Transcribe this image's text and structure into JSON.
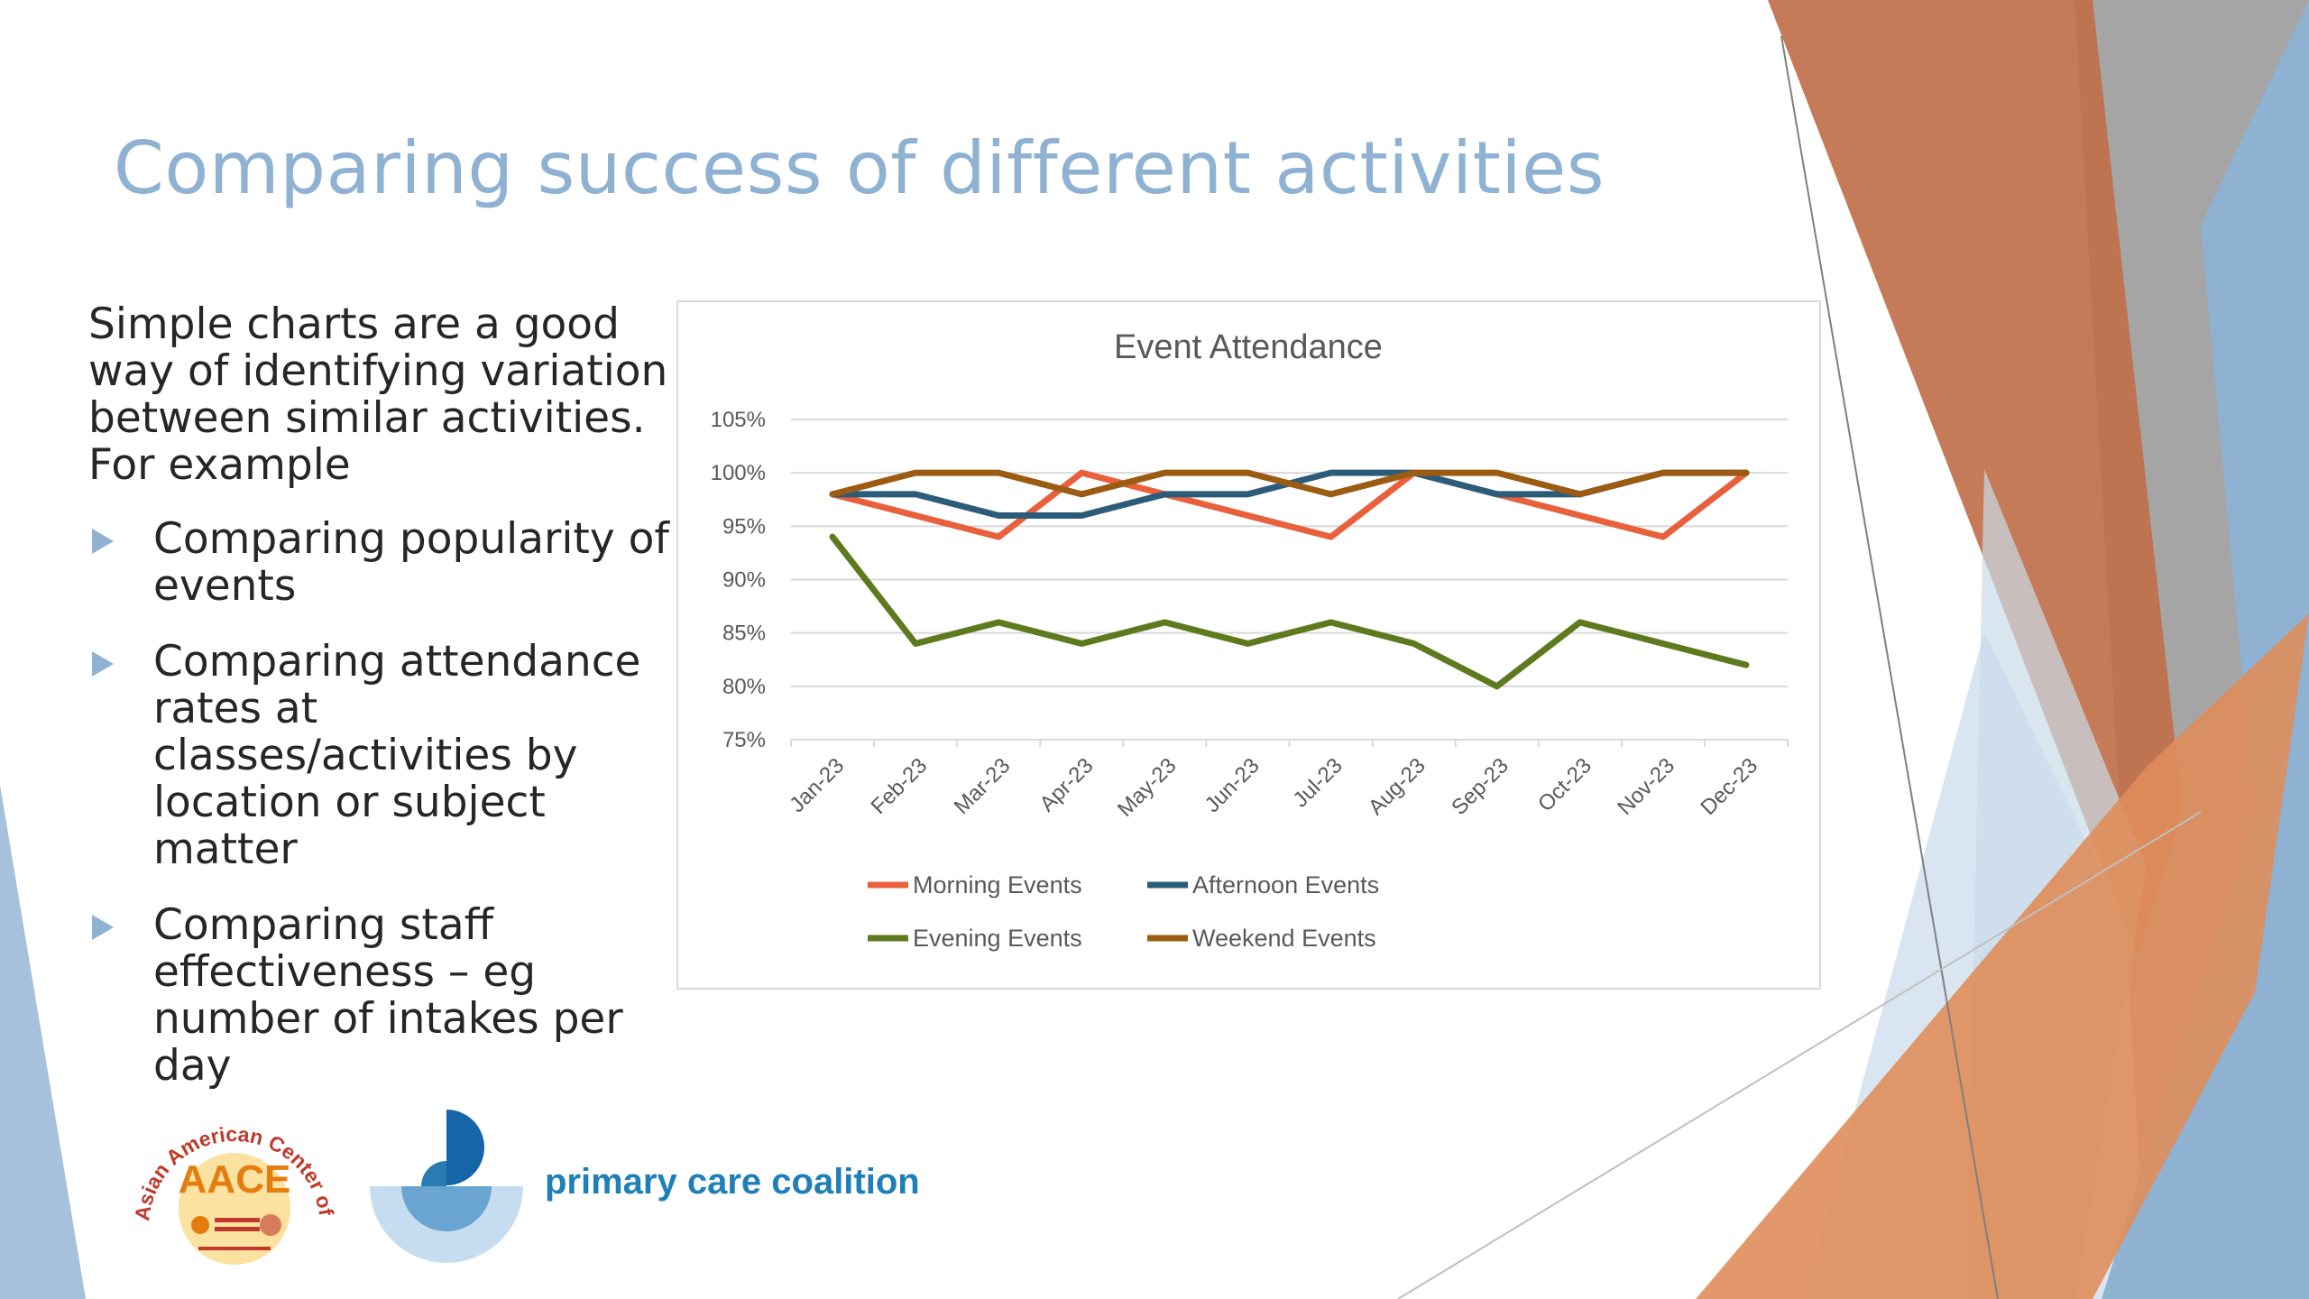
{
  "slide": {
    "title": "Comparing success of different activities",
    "intro": "Simple charts are a good way of identifying variation between similar activities. For example",
    "bullets": [
      "Comparing popularity of events",
      "Comparing attendance rates at classes/activities by location or subject matter",
      "Comparing staff effectiveness – eg number of intakes per day"
    ]
  },
  "logos": {
    "aace_arc_text": "Asian American Center of Excellence",
    "aace_acronym": "AACE",
    "pcc_name": "primary care coalition"
  },
  "colors": {
    "title": "#8fb2d2",
    "bullet_arrow": "#8fb2d2",
    "accent_orange": "#c0704a",
    "accent_blue": "#8fb2d2",
    "pcc_blue": "#1f7fb7"
  },
  "chart_data": {
    "type": "line",
    "title": "Event Attendance",
    "xlabel": "",
    "ylabel": "",
    "categories": [
      "Jan-23",
      "Feb-23",
      "Mar-23",
      "Apr-23",
      "May-23",
      "Jun-23",
      "Jul-23",
      "Aug-23",
      "Sep-23",
      "Oct-23",
      "Nov-23",
      "Dec-23"
    ],
    "ylim": [
      75,
      105
    ],
    "yticks": [
      "75%",
      "80%",
      "85%",
      "90%",
      "95%",
      "100%",
      "105%"
    ],
    "grid": true,
    "legend_position": "bottom",
    "series": [
      {
        "name": "Morning Events",
        "color": "#e8603c",
        "values": [
          98,
          96,
          94,
          100,
          98,
          96,
          94,
          100,
          98,
          96,
          94,
          100
        ]
      },
      {
        "name": "Afternoon Events",
        "color": "#2b5c7a",
        "values": [
          98,
          98,
          96,
          96,
          98,
          98,
          100,
          100,
          98,
          98,
          100,
          100
        ]
      },
      {
        "name": "Evening Events",
        "color": "#5e7a1e",
        "values": [
          94,
          84,
          86,
          84,
          86,
          84,
          86,
          84,
          80,
          86,
          84,
          82
        ]
      },
      {
        "name": "Weekend Events",
        "color": "#9c5b12",
        "values": [
          98,
          100,
          100,
          98,
          100,
          100,
          98,
          100,
          100,
          98,
          100,
          100
        ]
      }
    ]
  }
}
